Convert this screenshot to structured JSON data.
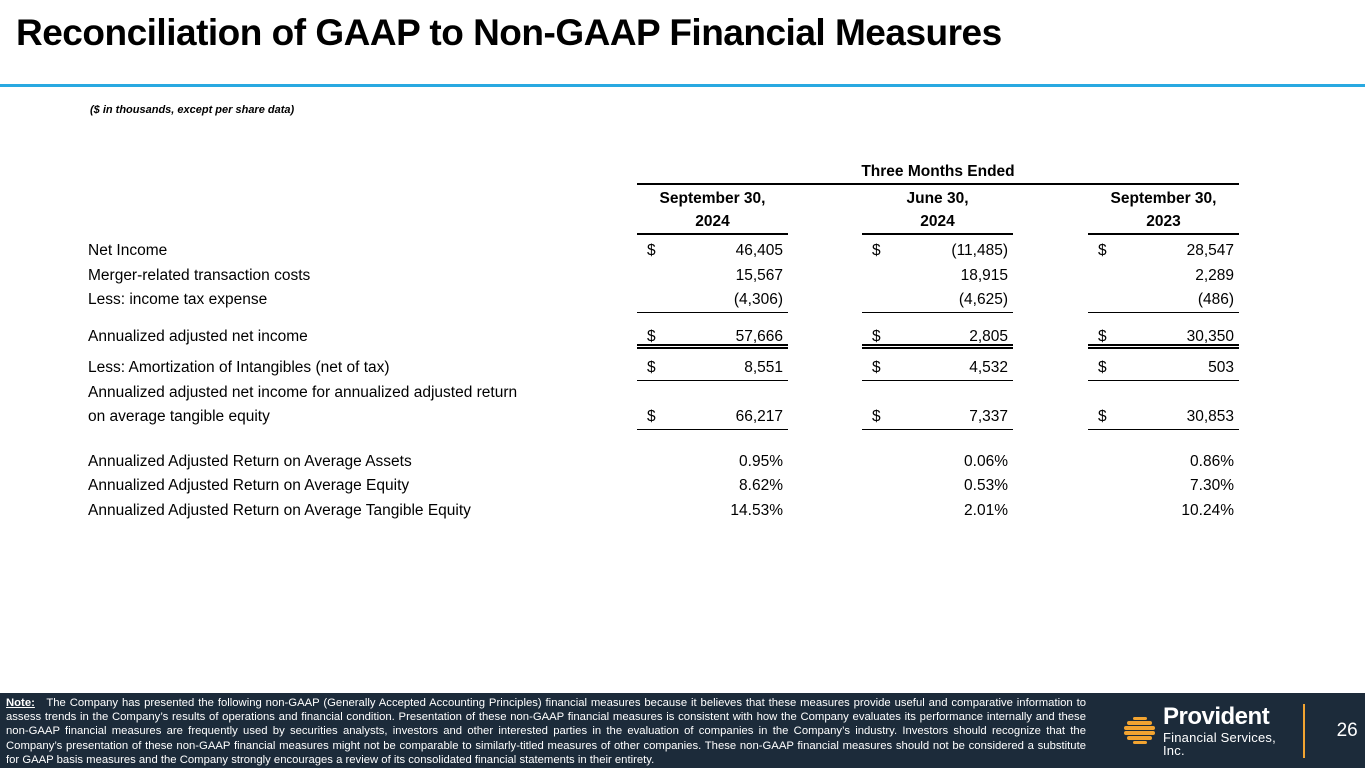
{
  "slide": {
    "title": "Reconciliation of GAAP to Non-GAAP Financial Measures",
    "units_note": "($ in thousands, except per share data)"
  },
  "colors": {
    "accent_blue": "#29A9E1",
    "footer_navy": "#1C2B3A",
    "brand_amber": "#F2A431"
  },
  "table": {
    "period_header": "Three Months Ended",
    "columns": [
      {
        "line1": "September 30,",
        "line2": "2024"
      },
      {
        "line1": "June 30,",
        "line2": "2024"
      },
      {
        "line1": "September 30,",
        "line2": "2023"
      }
    ],
    "rows": [
      {
        "label": "Net Income",
        "currency": "$",
        "values": [
          "46,405",
          "(11,485)",
          "28,547"
        ]
      },
      {
        "label": "Merger-related transaction costs",
        "values": [
          "15,567",
          "18,915",
          "2,289"
        ]
      },
      {
        "label": "Less: income tax expense",
        "values": [
          "(4,306)",
          "(4,625)",
          "(486)"
        ]
      },
      {
        "label": "Annualized adjusted net income",
        "currency": "$",
        "values": [
          "57,666",
          "2,805",
          "30,350"
        ]
      },
      {
        "label": "Less: Amortization of Intangibles (net of tax)",
        "currency": "$",
        "values": [
          "8,551",
          "4,532",
          "503"
        ]
      },
      {
        "label": "Annualized adjusted net income for annualized adjusted return"
      },
      {
        "label": "on average tangible equity",
        "currency": "$",
        "values": [
          "66,217",
          "7,337",
          "30,853"
        ]
      },
      {
        "label": "Annualized Adjusted Return on Average Assets",
        "values": [
          "0.95%",
          "0.06%",
          "0.86%"
        ]
      },
      {
        "label": "Annualized Adjusted Return on Average Equity",
        "values": [
          "8.62%",
          "0.53%",
          "7.30%"
        ]
      },
      {
        "label": "Annualized Adjusted Return on Average Tangible Equity",
        "values": [
          "14.53%",
          "2.01%",
          "10.24%"
        ]
      }
    ]
  },
  "footer": {
    "note_label": "Note:",
    "note_text": "The Company has presented the following non-GAAP (Generally Accepted Accounting Principles) financial measures because it believes that these measures provide useful and comparative information to assess trends in the Company’s results of operations and financial condition.  Presentation of  these non-GAAP financial measures is consistent with how the Company evaluates its performance internally and these non-GAAP financial measures are frequently used by securities analysts, investors and other interested parties in the evaluation of companies in the Company’s industry.  Investors should recognize that the Company’s presentation of these non-GAAP financial measures might not be comparable to similarly-titled measures of other companies.  These non-GAAP financial measures should not be considered a substitute for GAAP basis measures and the Company strongly encourages a review of its consolidated financial statements in their entirety.",
    "brand_name": "Provident",
    "brand_subtitle": "Financial Services, Inc.",
    "page_number": "26",
    "hive_icon": "provident-beehive-icon"
  }
}
